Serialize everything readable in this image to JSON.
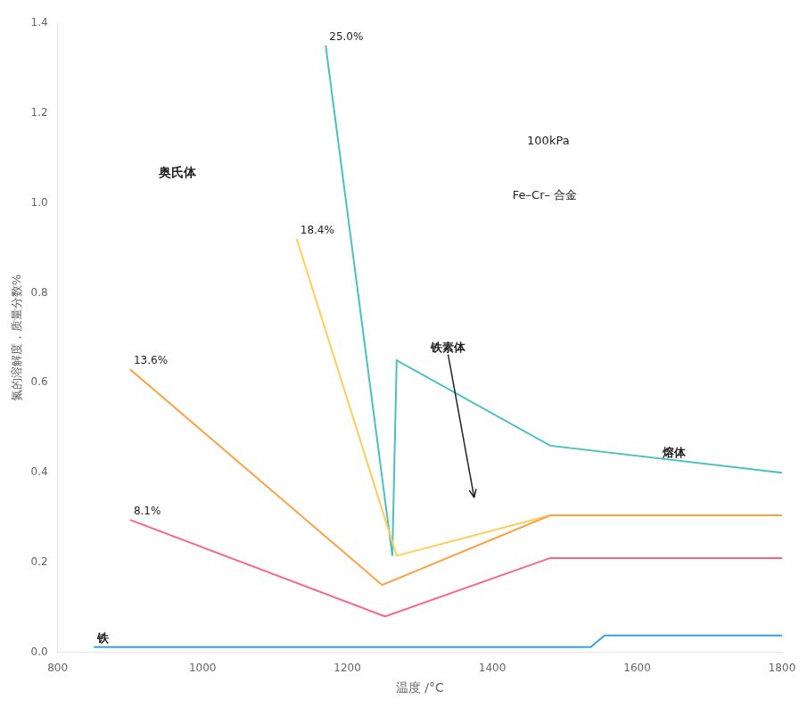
{
  "chart_data": {
    "type": "line",
    "xlabel": "温度 /°C",
    "ylabel": "氮的溶解度，质量分数%",
    "xlim": [
      800,
      1800
    ],
    "ylim": [
      0,
      1.4
    ],
    "xticks": [
      800,
      1000,
      1200,
      1400,
      1600,
      1800
    ],
    "yticks": [
      {
        "value": 0,
        "label": "0.0"
      },
      0.2,
      0.4,
      0.6,
      0.8,
      {
        "value": 1.0,
        "label": "1.0"
      },
      1.2,
      1.4
    ],
    "grid": false,
    "series": [
      {
        "name": "铁",
        "x": [
          850,
          1536,
          1536,
          1555,
          1555,
          1800
        ],
        "values": [
          0.012,
          0.012,
          0.012,
          0.038,
          0.038,
          0.038
        ]
      },
      {
        "name": "8.1%",
        "x": [
          900,
          1252,
          1252,
          1480,
          1480,
          1800
        ],
        "values": [
          0.295,
          0.08,
          0.08,
          0.21,
          0.21,
          0.21
        ]
      },
      {
        "name": "13.6%",
        "x": [
          900,
          1248,
          1248,
          1480,
          1480,
          1800
        ],
        "values": [
          0.63,
          0.15,
          0.15,
          0.305,
          0.305,
          0.305
        ]
      },
      {
        "name": "18.4%",
        "x": [
          1130,
          1268,
          1268,
          1480,
          1480,
          1800
        ],
        "values": [
          0.92,
          0.215,
          0.215,
          0.305,
          0.305,
          0.305
        ]
      },
      {
        "name": "25.0%",
        "x": [
          1170,
          1262,
          1262,
          1268,
          1268,
          1480,
          1480,
          1800
        ],
        "values": [
          1.35,
          0.215,
          0.215,
          0.65,
          0.65,
          0.46,
          0.46,
          0.4
        ]
      }
    ],
    "annotations": [
      "奥氏体",
      "熔体",
      "100kPa",
      "Fe–Cr– 合金",
      "铁素体"
    ]
  }
}
